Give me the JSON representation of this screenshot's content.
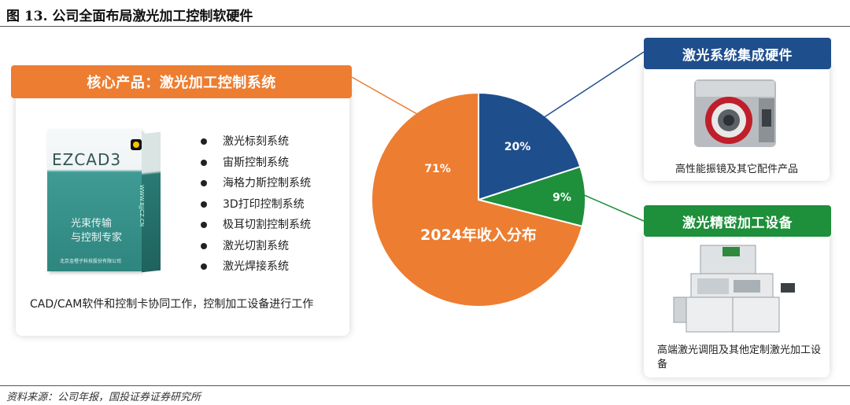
{
  "figure_title": "图 13. 公司全面布局激光加工控制软硬件",
  "source": "资料来源：公司年报，国投证券证券研究所",
  "left_panel": {
    "banner": "核心产品：激光加工控制系统",
    "box_brand": "EZCAD3",
    "box_line1": "光束传输",
    "box_line2": "与控制专家",
    "box_company": "北京金橙子科技股份有限公司",
    "box_url": "WWW.BJJCZ.CN",
    "items": [
      "激光标刻系统",
      "宙斯控制系统",
      "海格力斯控制系统",
      "3D打印控制系统",
      "极耳切割控制系统",
      "激光切割系统",
      "激光焊接系统"
    ],
    "description": "CAD/CAM软件和控制卡协同工作，控制加工设备进行工作"
  },
  "chart_data": {
    "type": "pie",
    "title": "2024年收入分布",
    "slices": [
      {
        "label": "20%",
        "value": 20,
        "color": "#1f4e8c"
      },
      {
        "label": "9%",
        "value": 9,
        "color": "#1e8f3a"
      },
      {
        "label": "71%",
        "value": 71,
        "color": "#ed7d31"
      }
    ]
  },
  "right_top": {
    "banner": "激光系统集成硬件",
    "caption": "高性能振镜及其它配件产品"
  },
  "right_bottom": {
    "banner": "激光精密加工设备",
    "caption": "高端激光调阻及其他定制激光加工设备"
  },
  "colors": {
    "orange": "#ed7d31",
    "blue": "#1f4e8c",
    "green": "#1e8f3a"
  }
}
